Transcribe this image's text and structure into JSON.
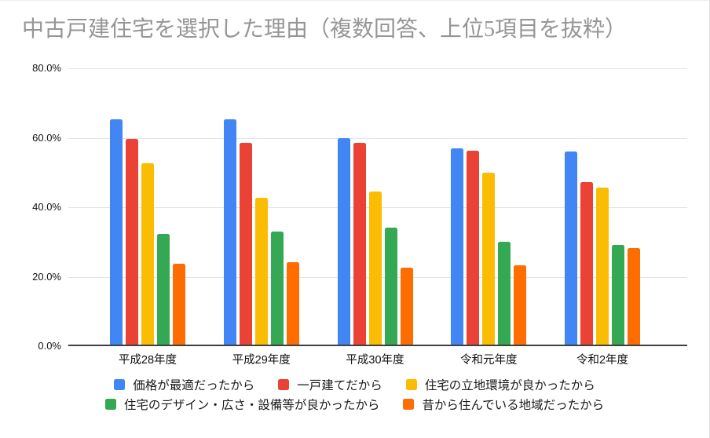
{
  "chart_data": {
    "type": "bar",
    "title": "中古戸建住宅を選択した理由（複数回答、上位5項目を抜粋）",
    "categories": [
      "平成28年度",
      "平成29年度",
      "平成30年度",
      "令和元年度",
      "令和2年度"
    ],
    "series": [
      {
        "name": "価格が最適だったから",
        "color": "#4285F4",
        "values": [
          65.3,
          65.3,
          59.7,
          56.9,
          55.9
        ]
      },
      {
        "name": "一戸建てだから",
        "color": "#EA4335",
        "values": [
          59.5,
          58.4,
          58.3,
          56.2,
          47.0
        ]
      },
      {
        "name": "住宅の立地環境が良かったから",
        "color": "#FBBC04",
        "values": [
          52.5,
          42.4,
          44.3,
          49.8,
          45.4
        ]
      },
      {
        "name": "住宅のデザイン・広さ・設備等が良かったから",
        "color": "#34A853",
        "values": [
          32.1,
          32.7,
          33.9,
          29.8,
          28.9
        ]
      },
      {
        "name": "昔から住んでいる地域だったから",
        "color": "#FF6D00",
        "values": [
          23.4,
          23.9,
          22.2,
          22.9,
          27.9
        ]
      }
    ],
    "ylim": [
      0,
      80
    ],
    "ytick_labels": [
      "80.0%",
      "60.0%",
      "40.0%",
      "20.0%",
      "0.0%"
    ],
    "grid": true,
    "legend_position": "bottom",
    "grid_color": "#e3e3e3",
    "axis_line_color": "#3c4043",
    "title_color": "#969696",
    "axis_text_color": "#111111"
  }
}
